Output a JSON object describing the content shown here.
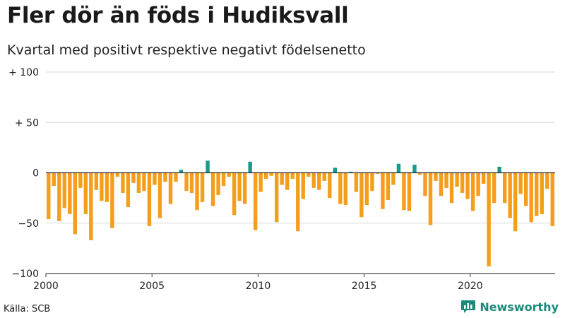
{
  "chart_data": {
    "type": "bar",
    "title": "Fler dör än föds i Hudiksvall",
    "subtitle": "Kvartal med positivt respektive negativt födelsenetto",
    "xlabel": "",
    "ylabel": "",
    "x_start": 2000,
    "x_end": 2024,
    "xticks": [
      2000,
      2005,
      2010,
      2015,
      2020
    ],
    "xtick_labels": [
      "2000",
      "2005",
      "2010",
      "2015",
      "2020"
    ],
    "ylim": [
      -100,
      100
    ],
    "yticks": [
      100,
      50,
      0,
      -50,
      -100
    ],
    "ytick_labels": [
      "+ 100",
      "+ 50",
      "0",
      "−50",
      "−100"
    ],
    "grid": true,
    "colors": {
      "positive": "#1a9a8a",
      "negative": "#f59e1b"
    },
    "quarters_per_year": 4,
    "values": [
      -46,
      -13,
      -48,
      -35,
      -41,
      -61,
      -15,
      -41,
      -67,
      -17,
      -28,
      -29,
      -55,
      -4,
      -20,
      -34,
      -10,
      -20,
      -18,
      -53,
      -12,
      -45,
      -9,
      -31,
      -9,
      3,
      -18,
      -20,
      -37,
      -29,
      12,
      -33,
      -22,
      -13,
      -4,
      -42,
      -28,
      -31,
      11,
      -57,
      -19,
      -6,
      -3,
      -49,
      -12,
      -17,
      -6,
      -58,
      -26,
      -4,
      -15,
      -17,
      -8,
      -25,
      5,
      -31,
      -32,
      1,
      -19,
      -44,
      -32,
      -18,
      -1,
      -36,
      -27,
      -12,
      9,
      -37,
      -38,
      8,
      -2,
      -23,
      -52,
      -8,
      -23,
      -15,
      -30,
      -14,
      -20,
      -26,
      -38,
      -23,
      -11,
      -93,
      -30,
      6,
      -30,
      -45,
      -58,
      -21,
      -33,
      -49,
      -43,
      -41,
      -16,
      -53
    ]
  },
  "source": "Källa: SCB",
  "brand": {
    "name": "Newsworthy",
    "icon": "newsworthy-chart-icon"
  }
}
